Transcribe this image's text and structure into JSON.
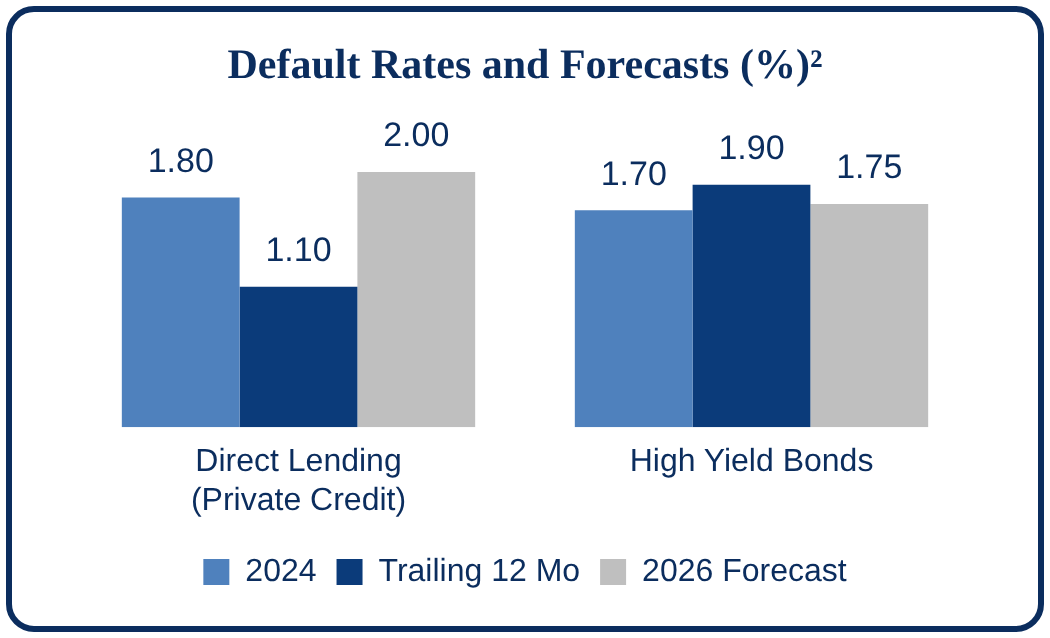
{
  "chart_data": {
    "type": "bar",
    "title": "Default Rates and Forecasts (%)²",
    "categories": [
      "Direct Lending (Private Credit)",
      "High Yield Bonds"
    ],
    "series": [
      {
        "name": "2024",
        "color": "#4f81bd",
        "values": [
          1.8,
          1.7
        ],
        "value_labels": [
          "1.80",
          "1.70"
        ]
      },
      {
        "name": "Trailing 12 Mo",
        "color": "#0b3b7a",
        "values": [
          1.1,
          1.9
        ],
        "value_labels": [
          "1.10",
          "1.90"
        ]
      },
      {
        "name": "2026 Forecast",
        "color": "#bfbfbf",
        "values": [
          2.0,
          1.75
        ],
        "value_labels": [
          "2.00",
          "1.75"
        ]
      }
    ],
    "legend": "bottom",
    "grid": false
  }
}
